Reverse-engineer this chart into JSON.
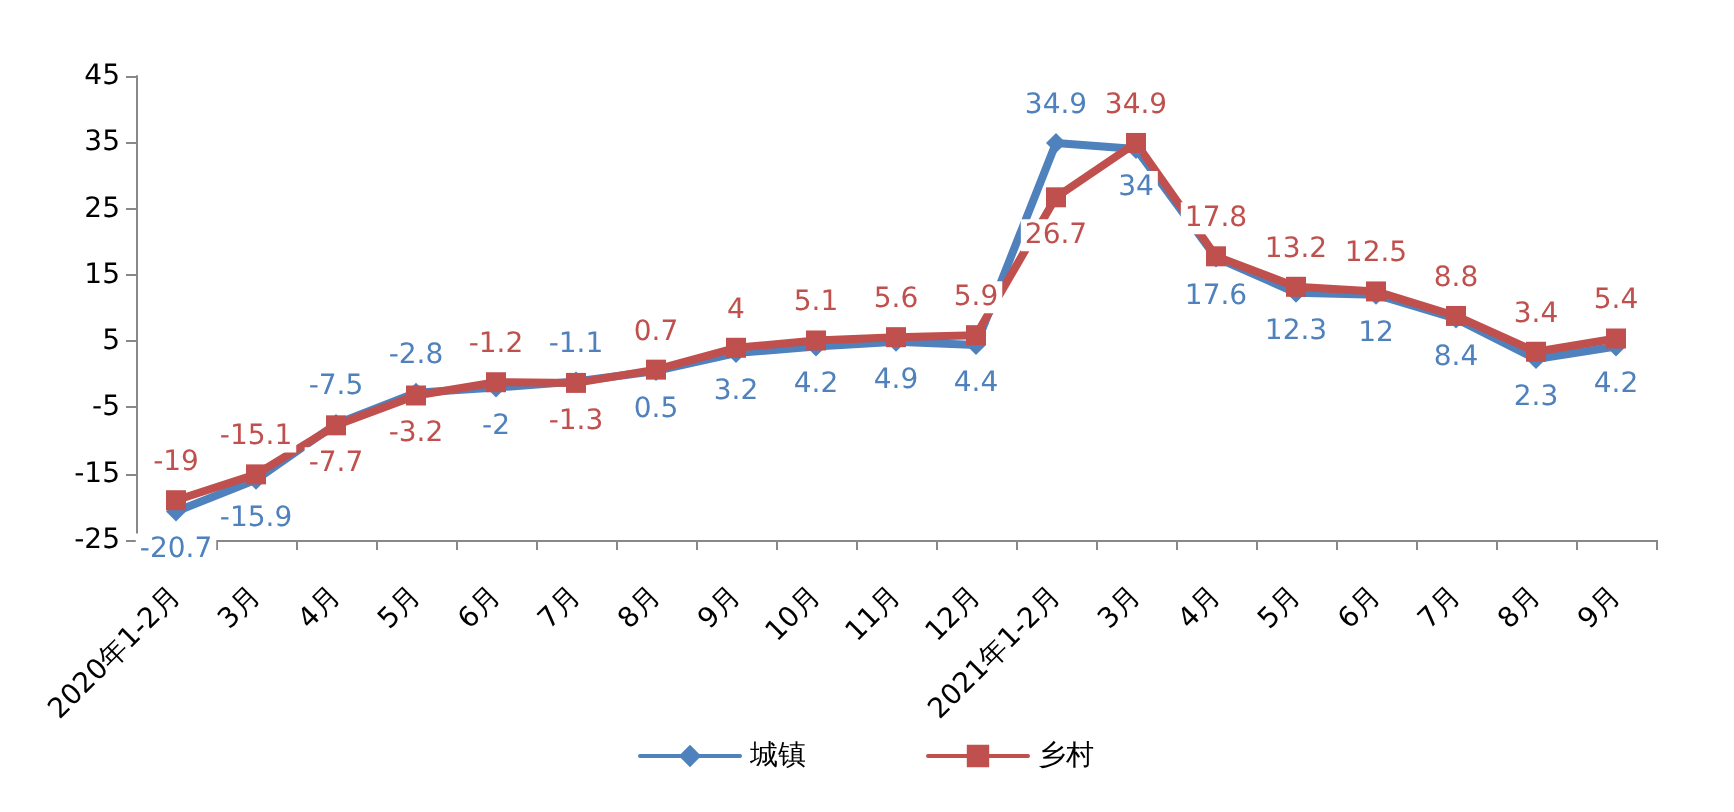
{
  "chart_data": {
    "type": "line",
    "categories": [
      "2020年1-2月",
      "3月",
      "4月",
      "5月",
      "6月",
      "7月",
      "8月",
      "9月",
      "10月",
      "11月",
      "12月",
      "2021年1-2月",
      "3月",
      "4月",
      "5月",
      "6月",
      "7月",
      "8月",
      "9月"
    ],
    "series": [
      {
        "name": "城镇",
        "color": "#4f81bd",
        "marker": "diamond",
        "values": [
          -20.7,
          -15.9,
          -7.5,
          -2.8,
          -2,
          -1.1,
          0.5,
          3.2,
          4.2,
          4.9,
          4.4,
          34.9,
          34,
          17.6,
          12.3,
          12,
          8.4,
          2.3,
          4.2
        ]
      },
      {
        "name": "乡村",
        "color": "#c0504d",
        "marker": "square",
        "values": [
          -19,
          -15.1,
          -7.7,
          -3.2,
          -1.2,
          -1.3,
          0.7,
          4,
          5.1,
          5.6,
          5.9,
          26.7,
          34.9,
          17.8,
          13.2,
          12.5,
          8.8,
          3.4,
          5.4
        ]
      }
    ],
    "ylim": [
      -25,
      45
    ],
    "yticks": [
      -25,
      -15,
      -5,
      5,
      15,
      25,
      35,
      45
    ],
    "grid": false,
    "legend": "bottom",
    "data_labels": true,
    "line_style": "solid"
  }
}
